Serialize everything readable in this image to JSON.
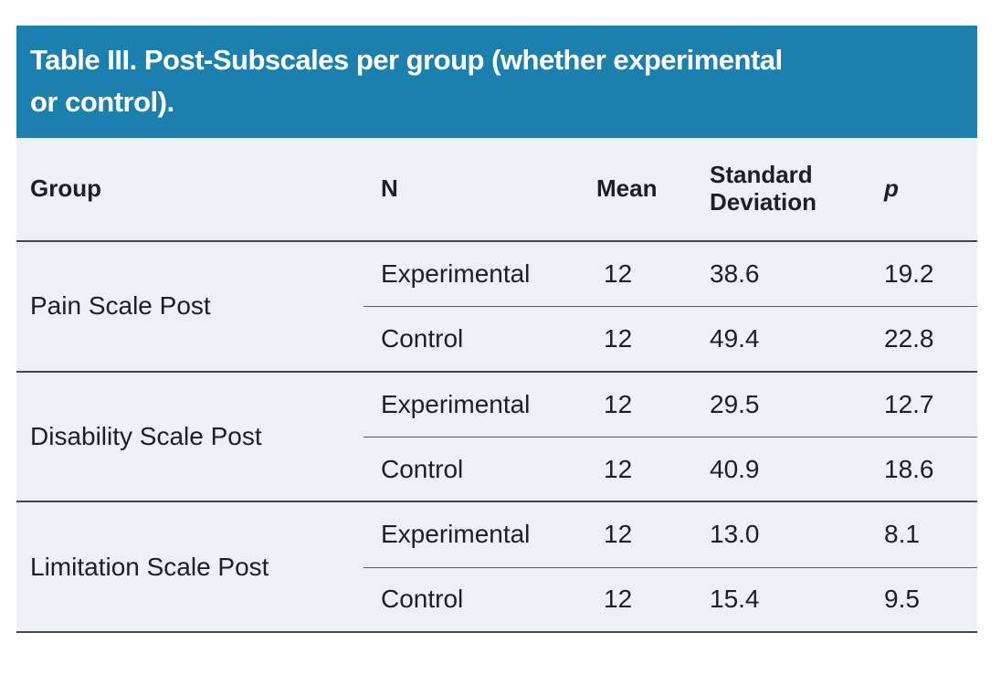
{
  "title": {
    "line1": "Table III. Post-Subscales per group (whether experimental",
    "line2": "or control)."
  },
  "table": {
    "headers": {
      "group": "Group",
      "n": "N",
      "mean": "Mean",
      "sd": "Standard Deviation",
      "p": "p"
    },
    "groups": [
      {
        "label": "Pain Scale Post",
        "rows": [
          {
            "condition": "Experimental",
            "n": "12",
            "mean": "38.6",
            "sd": "19.2"
          },
          {
            "condition": "Control",
            "n": "12",
            "mean": "49.4",
            "sd": "22.8"
          }
        ]
      },
      {
        "label": "Disability Scale Post",
        "rows": [
          {
            "condition": "Experimental",
            "n": "12",
            "mean": "29.5",
            "sd": "12.7"
          },
          {
            "condition": "Control",
            "n": "12",
            "mean": "40.9",
            "sd": "18.6"
          }
        ]
      },
      {
        "label": "Limitation Scale Post",
        "rows": [
          {
            "condition": "Experimental",
            "n": "12",
            "mean": "13.0",
            "sd": "8.1"
          },
          {
            "condition": "Control",
            "n": "12",
            "mean": "15.4",
            "sd": "9.5"
          }
        ]
      }
    ]
  },
  "colors": {
    "title_bar_bg": "#1b80ad",
    "title_text": "#ffffff",
    "table_bg": "#edf1f6",
    "rule": "#43464b",
    "text": "#1c1f24"
  }
}
